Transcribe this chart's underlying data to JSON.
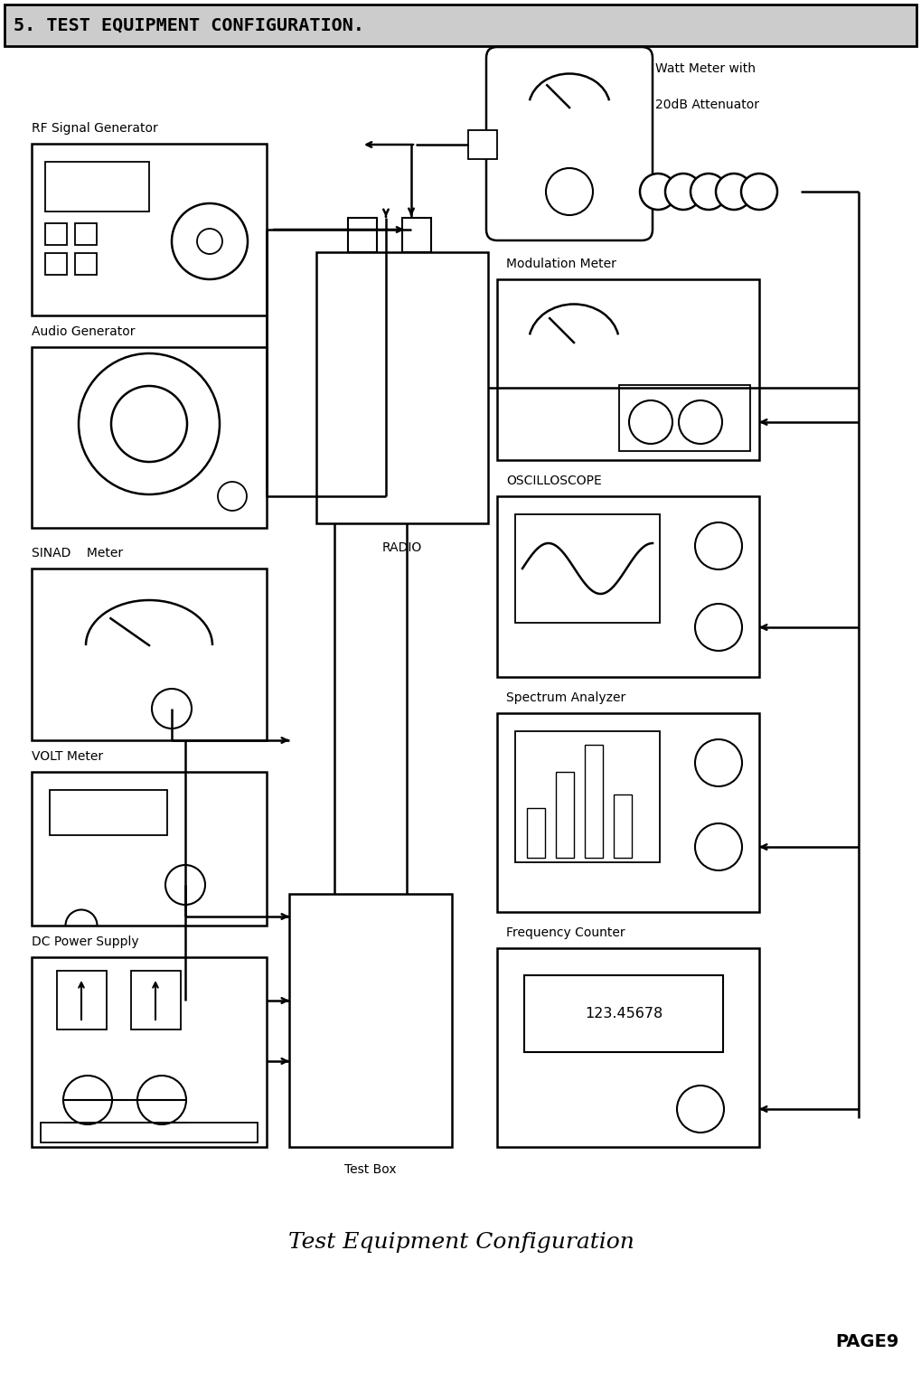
{
  "title": "5. TEST EQUIPMENT CONFIGURATION.",
  "subtitle": "Test Equipment Configuration",
  "page": "PAGE9",
  "bg_color": "#ffffff",
  "fg_color": "#000000",
  "figsize": [
    10.19,
    15.29
  ],
  "dpi": 100,
  "layout": {
    "rf_gen": [
      0.35,
      11.8,
      2.6,
      1.9
    ],
    "audio_gen": [
      0.35,
      9.45,
      2.6,
      2.0
    ],
    "sinad": [
      0.35,
      7.1,
      2.6,
      1.9
    ],
    "volt": [
      0.35,
      5.05,
      2.6,
      1.7
    ],
    "dc": [
      0.35,
      2.6,
      2.6,
      2.1
    ],
    "radio": [
      3.5,
      9.5,
      1.9,
      3.0
    ],
    "testbox": [
      3.2,
      2.6,
      1.8,
      2.8
    ],
    "watt": [
      5.5,
      12.8,
      1.6,
      1.9
    ],
    "mod": [
      5.5,
      10.2,
      2.9,
      2.0
    ],
    "osc": [
      5.5,
      7.8,
      2.9,
      2.0
    ],
    "spectrum": [
      5.5,
      5.2,
      2.9,
      2.2
    ],
    "freq": [
      5.5,
      2.6,
      2.9,
      2.2
    ]
  }
}
